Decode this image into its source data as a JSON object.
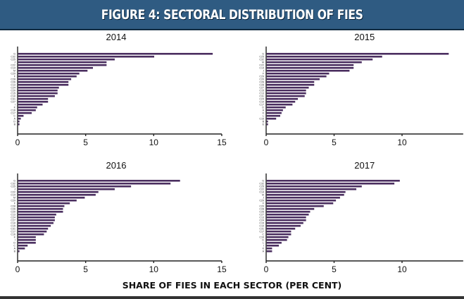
{
  "header": {
    "title": "FIGURE 4: SECTORAL DISTRIBUTION OF FIES"
  },
  "footer": {
    "xlabel": "SHARE OF FIES IN EACH SECTOR (PER CENT)"
  },
  "colors": {
    "header_bg": "#2f5b82",
    "bar": "#4b2f60"
  },
  "chart_data": [
    {
      "type": "bar",
      "orientation": "horizontal",
      "title": "2014",
      "xlabel": "SHARE OF FIES IN EACH SECTOR (PER CENT)",
      "xlim": [
        0,
        15
      ],
      "xticks": [
        0,
        5,
        10,
        15
      ],
      "grid": false,
      "categories": [
        "G",
        "C32",
        "C25",
        "J",
        "C22",
        "C14",
        "M",
        "C29",
        "F",
        "C28",
        "C26",
        "C13",
        "C24",
        "C20",
        "C15",
        "C10",
        "C31",
        "C27",
        "I",
        "K",
        "C16",
        "C17",
        "C",
        "A",
        "D",
        "B"
      ],
      "values": [
        14.3,
        10.0,
        7.1,
        6.5,
        6.5,
        5.5,
        5.1,
        4.5,
        4.3,
        3.9,
        3.7,
        3.7,
        3.0,
        2.9,
        2.9,
        2.7,
        2.2,
        2.2,
        1.8,
        1.4,
        1.3,
        1.0,
        0.4,
        0.2,
        0.1,
        0.1
      ]
    },
    {
      "type": "bar",
      "orientation": "horizontal",
      "title": "2015",
      "xlabel": "SHARE OF FIES IN EACH SECTOR (PER CENT)",
      "xlim": [
        0,
        14.5
      ],
      "xticks": [
        0,
        5,
        10
      ],
      "grid": false,
      "categories": [
        "G",
        "C25",
        "C32",
        "M",
        "C22",
        "C14",
        "J",
        "F",
        "C29",
        "C20",
        "C26",
        "C28",
        "C27",
        "C15",
        "C13",
        "C31",
        "C24",
        "C10",
        "C17",
        "D",
        "A",
        "K",
        "L",
        "C16",
        "B",
        "E"
      ],
      "values": [
        13.4,
        8.5,
        7.8,
        7.0,
        6.4,
        6.4,
        6.1,
        4.6,
        4.4,
        3.9,
        3.5,
        3.5,
        3.1,
        2.9,
        2.9,
        2.8,
        2.3,
        2.1,
        1.9,
        1.4,
        1.2,
        1.1,
        1.0,
        0.7,
        0.1,
        0.1
      ]
    },
    {
      "type": "bar",
      "orientation": "horizontal",
      "title": "2016",
      "xlabel": "SHARE OF FIES IN EACH SECTOR (PER CENT)",
      "xlim": [
        0,
        15
      ],
      "xticks": [
        0,
        5,
        10,
        15
      ],
      "grid": false,
      "categories": [
        "G",
        "C32",
        "C25",
        "J",
        "C22",
        "C14",
        "M",
        "C29",
        "F",
        "C28",
        "C26",
        "C20",
        "C13",
        "C24",
        "C27",
        "C10",
        "C15",
        "C31",
        "C17",
        "C16",
        "K",
        "I",
        "D",
        "C",
        "A",
        "B"
      ],
      "values": [
        11.9,
        11.2,
        8.3,
        7.1,
        5.9,
        5.7,
        4.9,
        4.3,
        3.8,
        3.4,
        3.3,
        3.3,
        2.8,
        2.7,
        2.7,
        2.6,
        2.4,
        2.2,
        2.1,
        1.9,
        1.3,
        1.3,
        1.3,
        0.7,
        0.5,
        0.1
      ]
    },
    {
      "type": "bar",
      "orientation": "horizontal",
      "title": "2017",
      "xlabel": "SHARE OF FIES IN EACH SECTOR (PER CENT)",
      "xlim": [
        0,
        14.5
      ],
      "xticks": [
        0,
        5,
        10
      ],
      "grid": false,
      "categories": [
        "G",
        "C32",
        "C25",
        "C22",
        "C14",
        "M",
        "J",
        "C29",
        "F",
        "C20",
        "C28",
        "C26",
        "C27",
        "C13",
        "C24",
        "C15",
        "C10",
        "C31",
        "C17",
        "C",
        "C16",
        "D",
        "L",
        "I",
        "K",
        "A"
      ],
      "values": [
        9.8,
        9.4,
        7.0,
        6.6,
        5.8,
        5.7,
        5.4,
        5.1,
        4.9,
        4.2,
        3.5,
        3.2,
        3.1,
        2.9,
        2.9,
        2.7,
        2.5,
        2.1,
        1.8,
        1.8,
        1.6,
        1.5,
        1.1,
        0.9,
        0.4,
        0.4
      ]
    }
  ]
}
